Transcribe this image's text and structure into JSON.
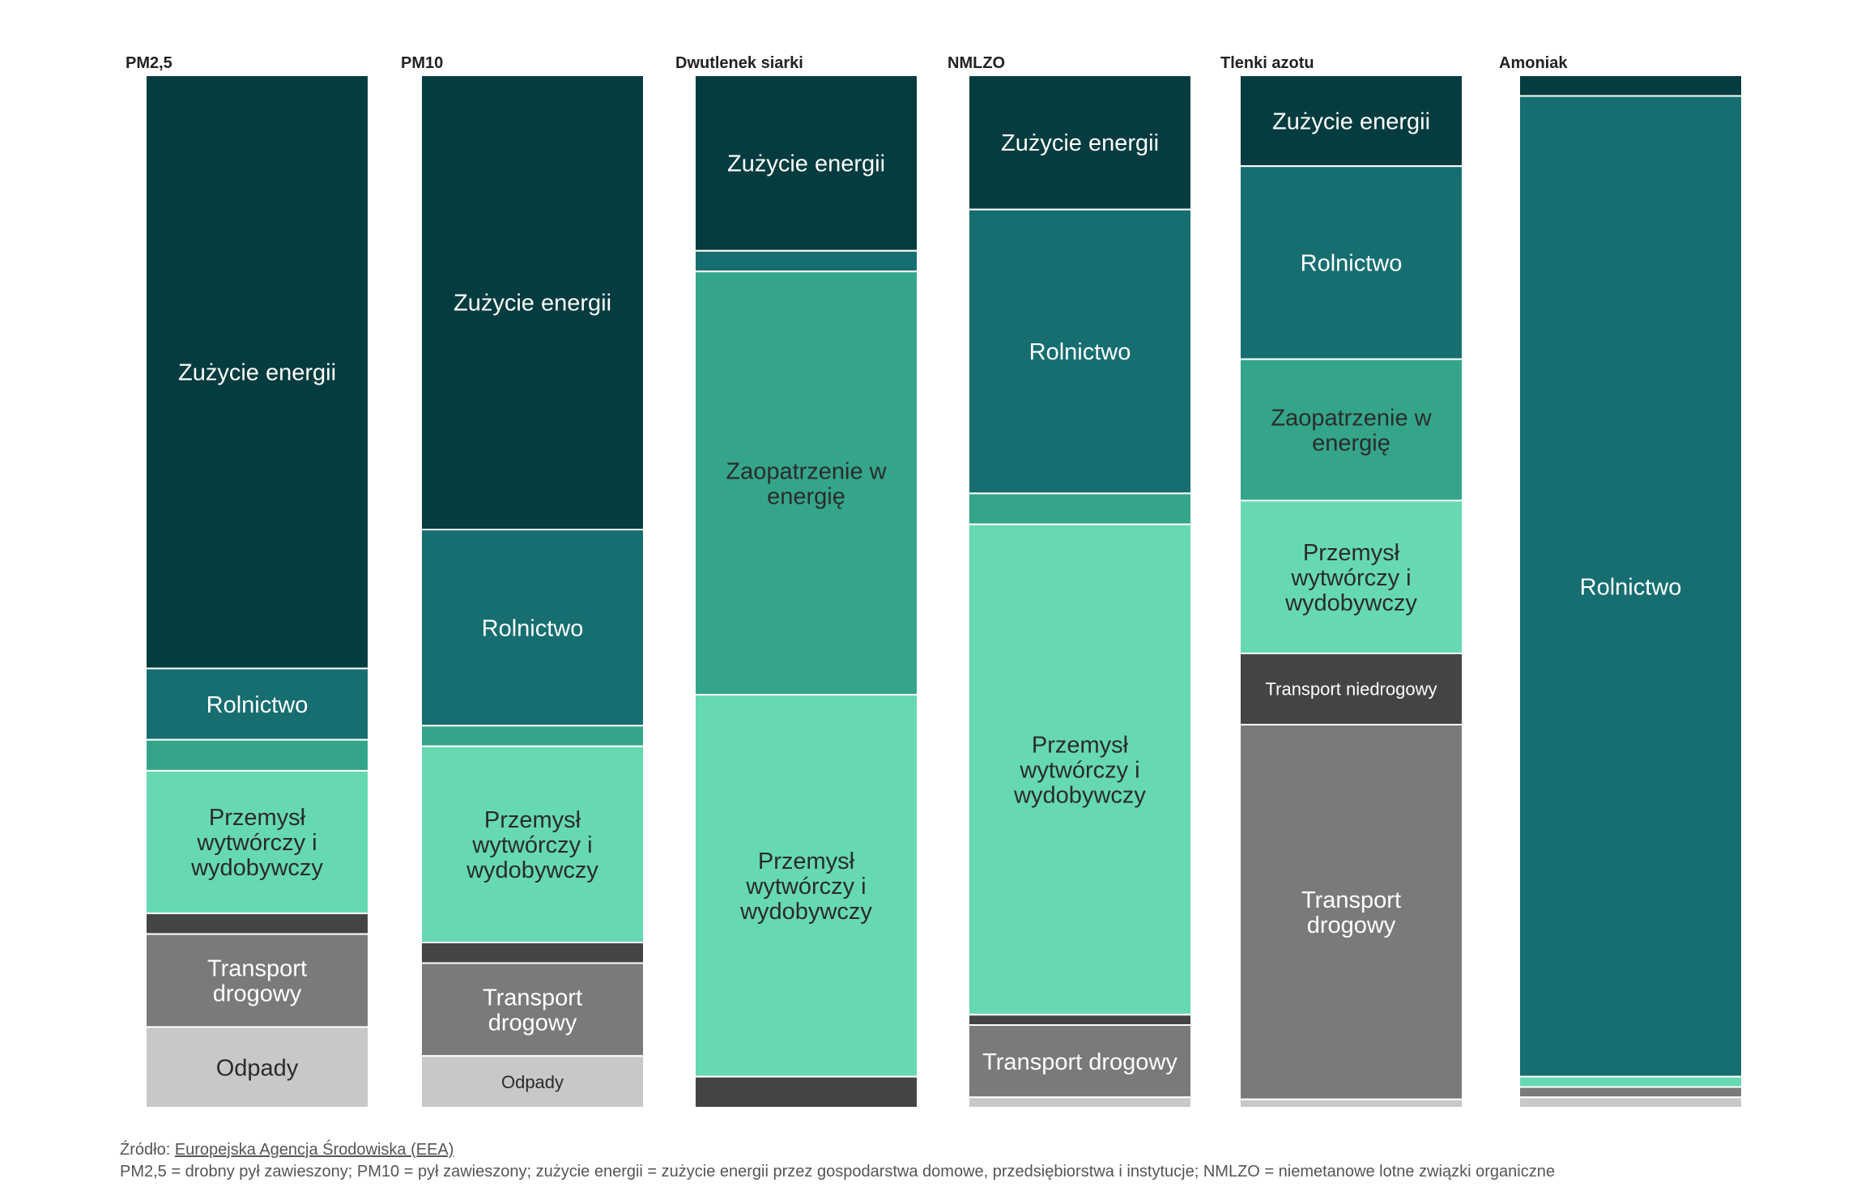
{
  "chart_data": {
    "type": "bar",
    "stacked": "100%",
    "xlabel": "",
    "ylabel": "",
    "legend": "none",
    "grid": false,
    "colors": {
      "energy_use": "#053c3f",
      "agriculture": "#166e71",
      "energy_supply": "#34a58a",
      "industry": "#66d9b1",
      "non_road": "#444444",
      "road": "#7a7a7a",
      "waste": "#c8c8c8"
    },
    "panels": [
      {
        "title": "PM2,5",
        "segments": [
          {
            "category": "energy_use",
            "value": 57.4,
            "label": "Zużycie energii",
            "dark_text": false
          },
          {
            "category": "agriculture",
            "value": 6.9,
            "label": "Rolnictwo",
            "dark_text": false
          },
          {
            "category": "energy_supply",
            "value": 3.0,
            "label": "",
            "dark_text": false
          },
          {
            "category": "industry",
            "value": 13.8,
            "label": "Przemysł\nwytwórczy i\nwydobywczy",
            "dark_text": true
          },
          {
            "category": "non_road",
            "value": 2.0,
            "label": "",
            "dark_text": false
          },
          {
            "category": "road",
            "value": 9.0,
            "label": "Transport\ndrogowy",
            "dark_text": false
          },
          {
            "category": "waste",
            "value": 7.8,
            "label": "Odpady",
            "dark_text": true
          }
        ]
      },
      {
        "title": "PM10",
        "segments": [
          {
            "category": "energy_use",
            "value": 44.0,
            "label": "Zużycie energii",
            "dark_text": false
          },
          {
            "category": "agriculture",
            "value": 19.0,
            "label": "Rolnictwo",
            "dark_text": false
          },
          {
            "category": "energy_supply",
            "value": 2.0,
            "label": "",
            "dark_text": false
          },
          {
            "category": "industry",
            "value": 19.0,
            "label": "Przemysł\nwytwórczy i\nwydobywczy",
            "dark_text": true
          },
          {
            "category": "non_road",
            "value": 2.0,
            "label": "",
            "dark_text": false
          },
          {
            "category": "road",
            "value": 9.0,
            "label": "Transport\ndrogowy",
            "dark_text": false
          },
          {
            "category": "waste",
            "value": 5.0,
            "label": "Odpady",
            "dark_text": true,
            "small": true
          }
        ]
      },
      {
        "title": "Dwutlenek siarki",
        "segments": [
          {
            "category": "energy_use",
            "value": 17.0,
            "label": "Zużycie energii",
            "dark_text": false
          },
          {
            "category": "agriculture",
            "value": 2.0,
            "label": "",
            "dark_text": false
          },
          {
            "category": "energy_supply",
            "value": 41.0,
            "label": "Zaopatrzenie w\nenergię",
            "dark_text": true
          },
          {
            "category": "industry",
            "value": 37.0,
            "label": "Przemysł\nwytwórczy i\nwydobywczy",
            "dark_text": true
          },
          {
            "category": "non_road",
            "value": 3.0,
            "label": "",
            "dark_text": false
          }
        ]
      },
      {
        "title": "NMLZO",
        "segments": [
          {
            "category": "energy_use",
            "value": 13.0,
            "label": "Zużycie energii",
            "dark_text": false
          },
          {
            "category": "agriculture",
            "value": 27.5,
            "label": "Rolnictwo",
            "dark_text": false
          },
          {
            "category": "energy_supply",
            "value": 3.0,
            "label": "",
            "dark_text": false
          },
          {
            "category": "industry",
            "value": 47.5,
            "label": "Przemysł\nwytwórczy i\nwydobywczy",
            "dark_text": true
          },
          {
            "category": "non_road",
            "value": 1.0,
            "label": "",
            "dark_text": false
          },
          {
            "category": "road",
            "value": 7.0,
            "label": "Transport drogowy",
            "dark_text": false
          },
          {
            "category": "waste",
            "value": 1.0,
            "label": "",
            "dark_text": false
          }
        ]
      },
      {
        "title": "Tlenki azotu",
        "segments": [
          {
            "category": "energy_use",
            "value": 8.8,
            "label": "Zużycie energii",
            "dark_text": false
          },
          {
            "category": "agriculture",
            "value": 18.7,
            "label": "Rolnictwo",
            "dark_text": false
          },
          {
            "category": "energy_supply",
            "value": 13.7,
            "label": "Zaopatrzenie w\nenergię",
            "dark_text": true
          },
          {
            "category": "industry",
            "value": 14.8,
            "label": "Przemysł\nwytwórczy i\nwydobywczy",
            "dark_text": true
          },
          {
            "category": "non_road",
            "value": 6.9,
            "label": "Transport niedrogowy",
            "dark_text": false,
            "small": true
          },
          {
            "category": "road",
            "value": 36.3,
            "label": "Transport\ndrogowy",
            "dark_text": false
          },
          {
            "category": "waste",
            "value": 0.8,
            "label": "",
            "dark_text": false
          }
        ]
      },
      {
        "title": "Amoniak",
        "segments": [
          {
            "category": "energy_use",
            "value": 2.0,
            "label": "",
            "dark_text": false
          },
          {
            "category": "agriculture",
            "value": 95.0,
            "label": "Rolnictwo",
            "dark_text": false
          },
          {
            "category": "industry",
            "value": 1.0,
            "label": "",
            "dark_text": false
          },
          {
            "category": "road",
            "value": 1.0,
            "label": "",
            "dark_text": false
          },
          {
            "category": "waste",
            "value": 1.0,
            "label": "",
            "dark_text": false
          }
        ]
      }
    ]
  },
  "footer": {
    "source_prefix": "Źródło: ",
    "source_link": "Europejska Agencja Środowiska (EEA)",
    "note": "PM2,5 = drobny pył zawieszony; PM10 = pył zawieszony; zużycie energii = zużycie energii przez gospodarstwa domowe, przedsiębiorstwa i instytucje; NMLZO = niemetanowe lotne związki organiczne"
  }
}
